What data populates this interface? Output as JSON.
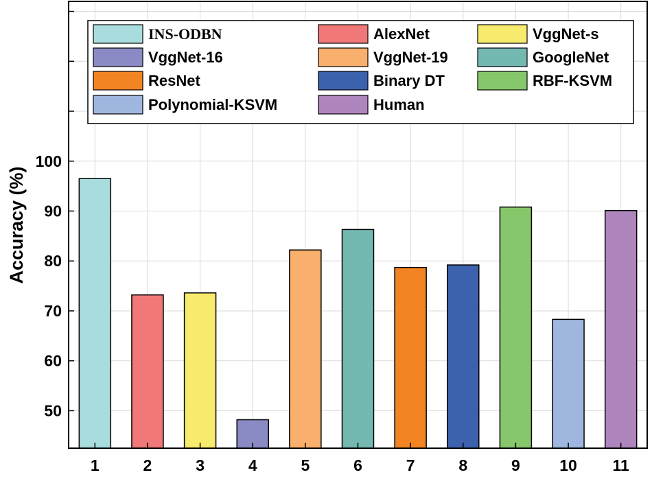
{
  "chart_data": {
    "type": "bar",
    "title": "",
    "xlabel": "",
    "ylabel": "Accuracy (%)",
    "categories": [
      "1",
      "2",
      "3",
      "4",
      "5",
      "6",
      "7",
      "8",
      "9",
      "10",
      "11"
    ],
    "ylim": [
      42.5,
      132
    ],
    "yticks": [
      50,
      60,
      70,
      80,
      90,
      100
    ],
    "grid": true,
    "legend_placement": "top",
    "series": [
      {
        "name": "INS-ODBN",
        "category": "1",
        "value": 96.5,
        "color": "#a8dcdd"
      },
      {
        "name": "AlexNet",
        "category": "2",
        "value": 73.2,
        "color": "#f07878"
      },
      {
        "name": "VggNet-s",
        "category": "3",
        "value": 73.6,
        "color": "#f7eb6e"
      },
      {
        "name": "VggNet-16",
        "category": "4",
        "value": 48.2,
        "color": "#8a8ac4"
      },
      {
        "name": "VggNet-19",
        "category": "5",
        "value": 82.2,
        "color": "#f9b06d"
      },
      {
        "name": "GoogleNet",
        "category": "6",
        "value": 86.3,
        "color": "#74b8b2"
      },
      {
        "name": "ResNet",
        "category": "7",
        "value": 78.7,
        "color": "#f38424"
      },
      {
        "name": "Binary DT",
        "category": "8",
        "value": 79.2,
        "color": "#3d62ad"
      },
      {
        "name": "RBF-KSVM",
        "category": "9",
        "value": 90.8,
        "color": "#87c76c"
      },
      {
        "name": "Polynomial-KSVM",
        "category": "10",
        "value": 68.3,
        "color": "#9fb6de"
      },
      {
        "name": "Human",
        "category": "11",
        "value": 90.1,
        "color": "#af85bd"
      }
    ]
  }
}
